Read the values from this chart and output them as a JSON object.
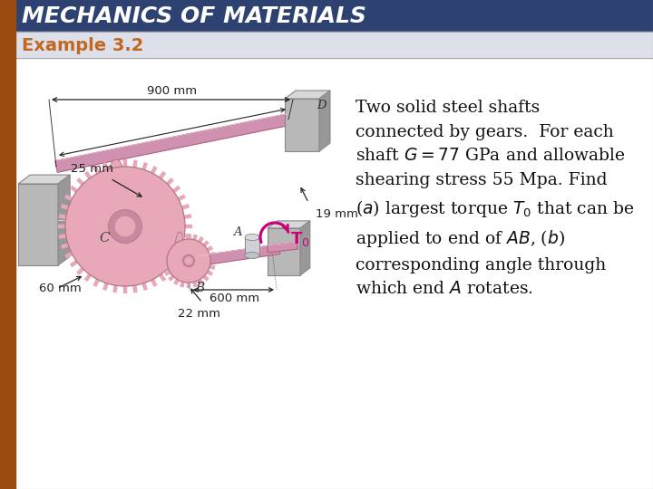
{
  "title": "MECHANICS OF MATERIALS",
  "subtitle": "Example 3.2",
  "title_bg": "#2e4272",
  "subtitle_bg": "#dde0e8",
  "title_color": "#ffffff",
  "subtitle_color": "#c06820",
  "left_bar_color": "#9b4a10",
  "bg_color": "#ffffff",
  "gear_fill": "#e8a8b8",
  "gear_edge": "#b07888",
  "shaft_fill": "#d090b0",
  "shaft_edge": "#b06080",
  "wall_fill_light": "#d8d8d8",
  "wall_fill_mid": "#b8b8b8",
  "wall_fill_dark": "#989898",
  "collar_fill": "#d0d0d0",
  "dim_color": "#222222",
  "torque_color": "#cc0077",
  "label_color": "#222222",
  "text_color": "#111111",
  "fig_width": 7.2,
  "fig_height": 5.4,
  "dpi": 100,
  "desc_lines": [
    "Two solid steel shafts",
    "connected by gears.  For each",
    "shaft $G = 77$ GPa and allowable",
    "shearing stress 55 Mpa. Find",
    "($a$) largest torque $T_0$ that can be",
    "applied to end of $AB$, ($b$)",
    "corresponding angle through",
    "which end $A$ rotates."
  ]
}
